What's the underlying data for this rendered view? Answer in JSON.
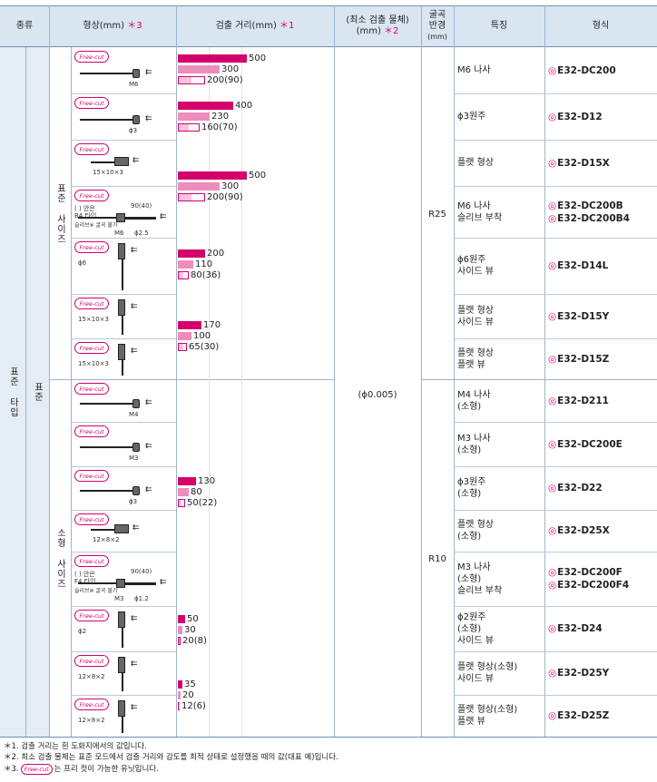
{
  "headers": {
    "type": "종류",
    "shape": "형상(mm)",
    "shape_mark": "＊3",
    "distance": "검출 거리(mm)",
    "distance_mark": "＊1",
    "min_object_1": "(최소 검출 물체)",
    "min_object_2": "(mm)",
    "min_object_mark": "＊2",
    "bend_1": "굴곡",
    "bend_2": "반경",
    "bend_3": "(mm)",
    "feature": "특징",
    "model": "형식"
  },
  "groups": {
    "type_label": "표준 타입",
    "sub_label": "표준",
    "size_std": "표준 사이즈",
    "size_small": "소형 사이즈"
  },
  "min_object_value": "(ϕ0.005)",
  "bend_std": "R25",
  "bend_small": "R10",
  "badge_text": "Free-cut",
  "model_mark": "◎",
  "rows": [
    {
      "feature": [
        "M6 나사"
      ],
      "models": [
        "E32-DC200"
      ],
      "dims": [
        "M6"
      ]
    },
    {
      "feature": [
        "ϕ3원주"
      ],
      "models": [
        "E32-D12"
      ],
      "dims": [
        "ϕ3"
      ]
    },
    {
      "feature": [
        "플랫 형상"
      ],
      "models": [
        "E32-D15X"
      ],
      "dims": [
        "15×10×3"
      ]
    },
    {
      "feature": [
        "M6 나사",
        "슬리브 부착"
      ],
      "models": [
        "E32-DC200B",
        "E32-DC200B4"
      ],
      "dims": [
        "( ) 안은",
        "B4 타입",
        "90(40)",
        "슬리브※ 굴곡 불가",
        "M6",
        "ϕ2.5"
      ]
    },
    {
      "feature": [
        "ϕ6원주",
        "사이드 뷰"
      ],
      "models": [
        "E32-D14L"
      ],
      "dims": [
        "ϕ6"
      ]
    },
    {
      "feature": [
        "플랫 형상",
        "사이드 뷰"
      ],
      "models": [
        "E32-D15Y"
      ],
      "dims": [
        "15×10×3"
      ]
    },
    {
      "feature": [
        "플랫 형상",
        "플랫 뷰"
      ],
      "models": [
        "E32-D15Z"
      ],
      "dims": [
        "15×10×3"
      ]
    },
    {
      "feature": [
        "M4 나사",
        "(소형)"
      ],
      "models": [
        "E32-D211"
      ],
      "dims": [
        "M4"
      ]
    },
    {
      "feature": [
        "M3 나사",
        "(소형)"
      ],
      "models": [
        "E32-DC200E"
      ],
      "dims": [
        "M3"
      ]
    },
    {
      "feature": [
        "ϕ3원주",
        "(소형)"
      ],
      "models": [
        "E32-D22"
      ],
      "dims": [
        "ϕ3"
      ]
    },
    {
      "feature": [
        "플랫 형상",
        "(소형)"
      ],
      "models": [
        "E32-D25X"
      ],
      "dims": [
        "12×8×2"
      ]
    },
    {
      "feature": [
        "M3 나사",
        "(소형)",
        "슬리브 부착"
      ],
      "models": [
        "E32-DC200F",
        "E32-DC200F4"
      ],
      "dims": [
        "( ) 안은",
        "F4 타입",
        "90(40)",
        "슬리브※ 굴곡 불가",
        "M3",
        "ϕ1.2"
      ]
    },
    {
      "feature": [
        "ϕ2원주",
        "(소형)",
        "사이드 뷰"
      ],
      "models": [
        "E32-D24"
      ],
      "dims": [
        "ϕ2"
      ]
    },
    {
      "feature": [
        "플랫 형상(소형)",
        "사이드 뷰"
      ],
      "models": [
        "E32-D25Y"
      ],
      "dims": [
        "12×8×2"
      ]
    },
    {
      "feature": [
        "플랫 형상(소형)",
        "플랫 뷰"
      ],
      "models": [
        "E32-D25Z"
      ],
      "dims": [
        "12×8×2"
      ]
    }
  ],
  "chart_data": {
    "type": "bar",
    "xlabel": "검출 거리(mm)",
    "xlim": [
      0,
      500
    ],
    "groups": [
      {
        "models": [
          "E32-DC200"
        ],
        "bars": [
          {
            "value": 500,
            "label": "500"
          },
          {
            "value": 300,
            "label": "300"
          },
          {
            "value": 200,
            "inner": 90,
            "label": "200(90)"
          }
        ]
      },
      {
        "models": [
          "E32-D12"
        ],
        "bars": [
          {
            "value": 400,
            "label": "400"
          },
          {
            "value": 230,
            "label": "230"
          },
          {
            "value": 160,
            "inner": 70,
            "label": "160(70)"
          }
        ]
      },
      {
        "models": [
          "E32-D15X",
          "E32-DC200B",
          "E32-DC200B4"
        ],
        "bars": [
          {
            "value": 500,
            "label": "500"
          },
          {
            "value": 300,
            "label": "300"
          },
          {
            "value": 200,
            "inner": 90,
            "label": "200(90)"
          }
        ]
      },
      {
        "models": [
          "E32-D14L"
        ],
        "bars": [
          {
            "value": 200,
            "label": "200"
          },
          {
            "value": 110,
            "label": "110"
          },
          {
            "value": 80,
            "inner": 36,
            "label": "80(36)"
          }
        ]
      },
      {
        "models": [
          "E32-D15Y",
          "E32-D15Z"
        ],
        "bars": [
          {
            "value": 170,
            "label": "170"
          },
          {
            "value": 100,
            "label": "100"
          },
          {
            "value": 65,
            "inner": 30,
            "label": "65(30)"
          }
        ]
      },
      {
        "models": [
          "E32-D211",
          "E32-DC200E",
          "E32-D22",
          "E32-D25X",
          "E32-DC200F",
          "E32-DC200F4"
        ],
        "bars": [
          {
            "value": 130,
            "label": "130"
          },
          {
            "value": 80,
            "label": "80"
          },
          {
            "value": 50,
            "inner": 22,
            "label": "50(22)"
          }
        ]
      },
      {
        "models": [
          "E32-D24"
        ],
        "bars": [
          {
            "value": 50,
            "label": "50"
          },
          {
            "value": 30,
            "label": "30"
          },
          {
            "value": 20,
            "inner": 8,
            "label": "20(8)"
          }
        ]
      },
      {
        "models": [
          "E32-D25Y",
          "E32-D25Z"
        ],
        "bars": [
          {
            "value": 35,
            "label": "35"
          },
          {
            "value": 20,
            "label": "20"
          },
          {
            "value": 12,
            "inner": 6,
            "label": "12(6)"
          }
        ]
      }
    ]
  },
  "notes": [
    "＊1. 검출 거리는 흰 도화지에서의 값입니다.",
    "＊2. 최소 검출 물체는 표준 모드에서 검출 거리와 감도를 최적 상태로 설정했을 때의 값(대표 예)입니다.",
    "는 프리 컷이 가능한 유닛입니다."
  ],
  "note3_prefix": "＊3."
}
